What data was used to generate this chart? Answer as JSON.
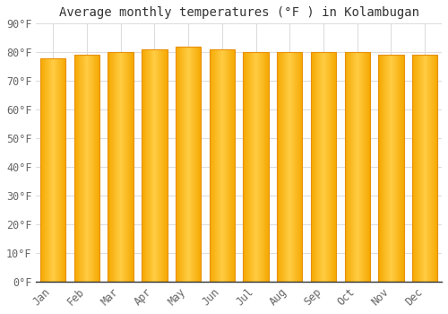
{
  "months": [
    "Jan",
    "Feb",
    "Mar",
    "Apr",
    "May",
    "Jun",
    "Jul",
    "Aug",
    "Sep",
    "Oct",
    "Nov",
    "Dec"
  ],
  "values": [
    78,
    79,
    80,
    81,
    82,
    81,
    80,
    80,
    80,
    80,
    79,
    79
  ],
  "title": "Average monthly temperatures (°F ) in Kolambugan",
  "ylim": [
    0,
    90
  ],
  "yticks": [
    0,
    10,
    20,
    30,
    40,
    50,
    60,
    70,
    80,
    90
  ],
  "ytick_labels": [
    "0°F",
    "10°F",
    "20°F",
    "30°F",
    "40°F",
    "50°F",
    "60°F",
    "70°F",
    "80°F",
    "90°F"
  ],
  "bg_color": "#FFFFFF",
  "plot_bg_color": "#FFFFFF",
  "title_fontsize": 10,
  "tick_fontsize": 8.5,
  "grid_color": "#DDDDDD",
  "bar_edge_color": "#E8900A",
  "bar_center_color": "#FFCC44",
  "bar_side_color": "#F5A800",
  "bar_width": 0.75
}
